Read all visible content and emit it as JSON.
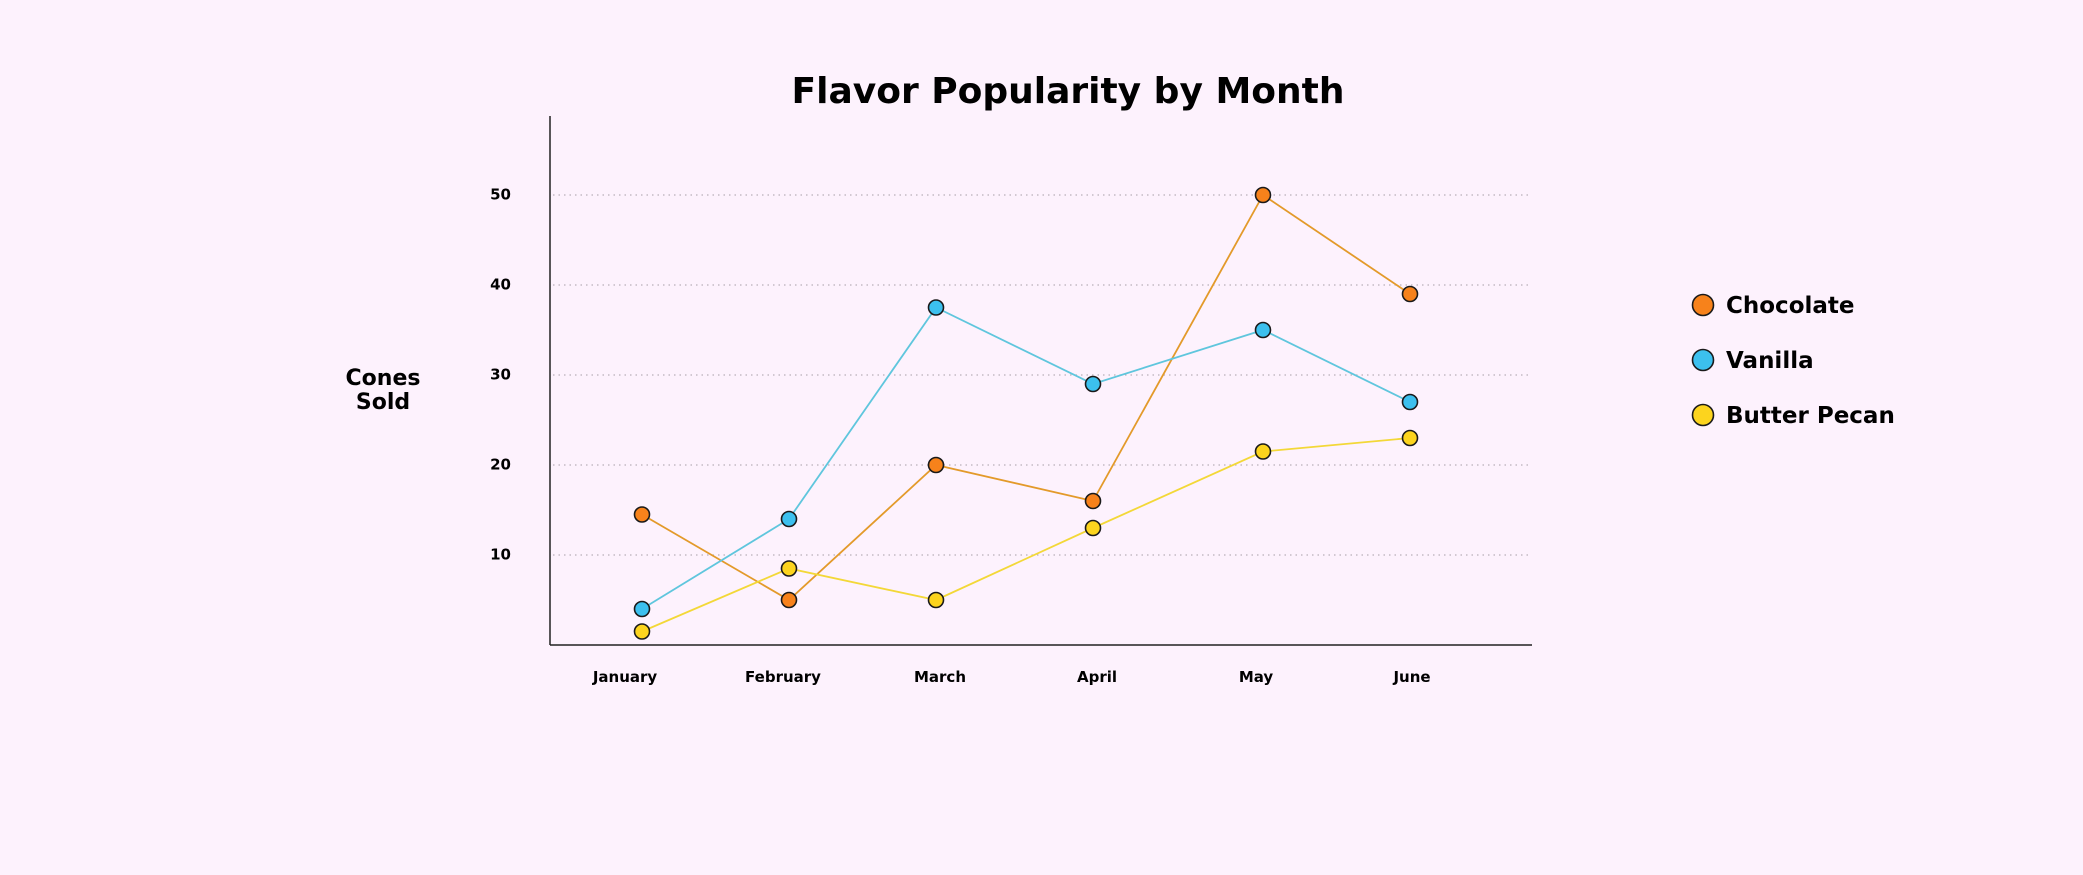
{
  "chart_data": {
    "type": "line",
    "title": "Flavor Popularity by Month",
    "ylabel_lines": [
      "Cones",
      "Sold"
    ],
    "xlabel": "",
    "categories": [
      "January",
      "February",
      "March",
      "April",
      "May",
      "June"
    ],
    "yticks": [
      10,
      20,
      30,
      40,
      50
    ],
    "ylim": [
      0,
      58
    ],
    "grid": "horizontal dotted",
    "legend_position": "right",
    "series": [
      {
        "name": "Chocolate",
        "color": "#f7821b",
        "line_color": "#e39a2a",
        "values": [
          14.5,
          5,
          20,
          16,
          50,
          39
        ]
      },
      {
        "name": "Vanilla",
        "color": "#3cc0ee",
        "line_color": "#5fc6dd",
        "values": [
          4,
          14,
          37.5,
          29,
          35,
          27
        ]
      },
      {
        "name": "Butter Pecan",
        "color": "#fcd41e",
        "line_color": "#f3d838",
        "values": [
          1.5,
          8.5,
          5,
          13,
          21.5,
          23
        ]
      }
    ]
  }
}
